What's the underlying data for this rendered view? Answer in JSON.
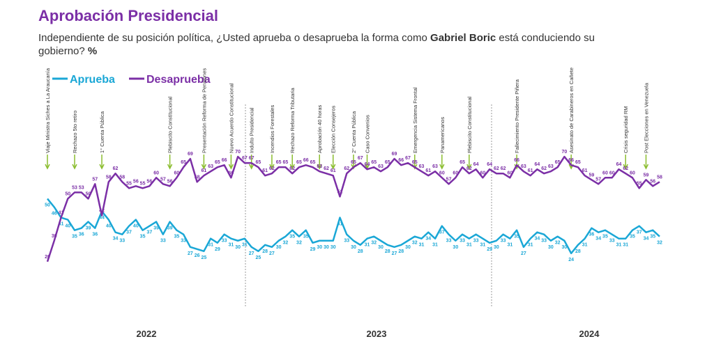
{
  "chart_data": {
    "type": "line",
    "title": "Aprobación Presidencial",
    "subtitle": [
      "Independiente de su posición política, ¿Usted aprueba o desaprueba la forma como ",
      "Gabriel Boric",
      " está conduciendo su gobierno? ",
      "%"
    ],
    "ylim": [
      15,
      75
    ],
    "series": [
      {
        "name": "Aprueba",
        "color": "#1aa7d6",
        "values": [
          50,
          46,
          41,
          40,
          35,
          36,
          39,
          36,
          44,
          40,
          34,
          33,
          37,
          40,
          35,
          37,
          39,
          33,
          39,
          35,
          33,
          27,
          26,
          25,
          31,
          29,
          33,
          31,
          30,
          31,
          27,
          25,
          28,
          27,
          30,
          32,
          35,
          32,
          35,
          29,
          30,
          30,
          30,
          41,
          33,
          30,
          28,
          31,
          32,
          30,
          28,
          27,
          28,
          30,
          32,
          31,
          34,
          31,
          37,
          33,
          30,
          33,
          31,
          33,
          31,
          29,
          30,
          33,
          31,
          35,
          27,
          31,
          34,
          33,
          30,
          32,
          30,
          24,
          28,
          31,
          36,
          34,
          35,
          33,
          31,
          31,
          35,
          37,
          34,
          35,
          32
        ]
      },
      {
        "name": "Desaprueba",
        "color": "#7b2fa6",
        "values": [
          20,
          30,
          41,
          50,
          53,
          53,
          50,
          57,
          42,
          58,
          62,
          58,
          55,
          56,
          55,
          56,
          60,
          57,
          56,
          60,
          65,
          69,
          58,
          61,
          63,
          65,
          66,
          60,
          70,
          67,
          67,
          65,
          61,
          62,
          65,
          65,
          62,
          65,
          66,
          65,
          63,
          62,
          61,
          51,
          62,
          65,
          67,
          64,
          65,
          63,
          65,
          69,
          66,
          67,
          65,
          63,
          61,
          63,
          60,
          57,
          60,
          65,
          62,
          64,
          60,
          64,
          62,
          62,
          60,
          66,
          63,
          61,
          64,
          62,
          63,
          65,
          70,
          66,
          65,
          61,
          59,
          57,
          60,
          60,
          64,
          62,
          60,
          55,
          59,
          56,
          58
        ]
      }
    ],
    "events": [
      {
        "label": "Viaje Ministra Siches a La Araucanía",
        "index": 0
      },
      {
        "label": "Rechazo 5to retiro",
        "index": 4
      },
      {
        "label": "1° Cuenta Pública",
        "index": 8
      },
      {
        "label": "Plebiscito Constitucional",
        "index": 18
      },
      {
        "label": "Presentación Reforma de Pensiones",
        "index": 23
      },
      {
        "label": "Nuevo Acuerdo Constitucional",
        "index": 27
      },
      {
        "label": "Indulto Presidencial",
        "index": 30
      },
      {
        "label": "Incendios Forestales",
        "index": 33
      },
      {
        "label": "Rechazo Reforma Tributaria",
        "index": 36
      },
      {
        "label": "Aprobación 40 horas",
        "index": 40
      },
      {
        "label": "Elección Consejeros",
        "index": 42
      },
      {
        "label": "2° Cuenta Pública",
        "index": 45
      },
      {
        "label": "Caso Convenios",
        "index": 47
      },
      {
        "label": "Emergencia Sistema Frontal",
        "index": 54
      },
      {
        "label": "Panamericanos",
        "index": 58
      },
      {
        "label": "Plebiscito Constitucional",
        "index": 62
      },
      {
        "label": "Fallecimiento Presidente Piñera",
        "index": 69
      },
      {
        "label": "Asesinato de Carabineros en Cañete",
        "index": 77
      },
      {
        "label": "Crisis seguridad RM",
        "index": 85
      },
      {
        "label": "Post Elecciones en Venezuela",
        "index": 88
      }
    ],
    "years": [
      "2022",
      "2023",
      "2024"
    ]
  }
}
